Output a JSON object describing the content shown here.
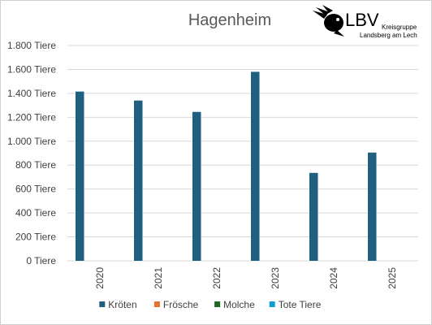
{
  "logo": {
    "brand": "LBV",
    "line1": "Kreisgruppe",
    "line2": "Landsberg am Lech"
  },
  "chart_data": {
    "type": "bar",
    "title": "Hagenheim",
    "categories": [
      "2020",
      "2021",
      "2022",
      "2023",
      "2024",
      "2025"
    ],
    "series": [
      {
        "name": "Kröten",
        "color": "#1f5f7f",
        "values": [
          1415,
          1340,
          1245,
          1580,
          735,
          905
        ]
      },
      {
        "name": "Frösche",
        "color": "#e97132",
        "values": [
          0,
          0,
          0,
          0,
          0,
          0
        ]
      },
      {
        "name": "Molche",
        "color": "#196b24",
        "values": [
          0,
          0,
          0,
          0,
          0,
          0
        ]
      },
      {
        "name": "Tote Tiere",
        "color": "#0f9ed5",
        "values": [
          0,
          0,
          0,
          0,
          0,
          0
        ]
      }
    ],
    "ylim": [
      0,
      1800
    ],
    "yticks": [
      0,
      200,
      400,
      600,
      800,
      1000,
      1200,
      1400,
      1600,
      1800
    ],
    "ytick_labels": [
      "0 Tiere",
      "200 Tiere",
      "400 Tiere",
      "600 Tiere",
      "800 Tiere",
      "1.000 Tiere",
      "1.200 Tiere",
      "1.400 Tiere",
      "1.600 Tiere",
      "1.800 Tiere"
    ],
    "grid": true,
    "legend_position": "bottom",
    "gridline_color": "#d9d9d9"
  }
}
